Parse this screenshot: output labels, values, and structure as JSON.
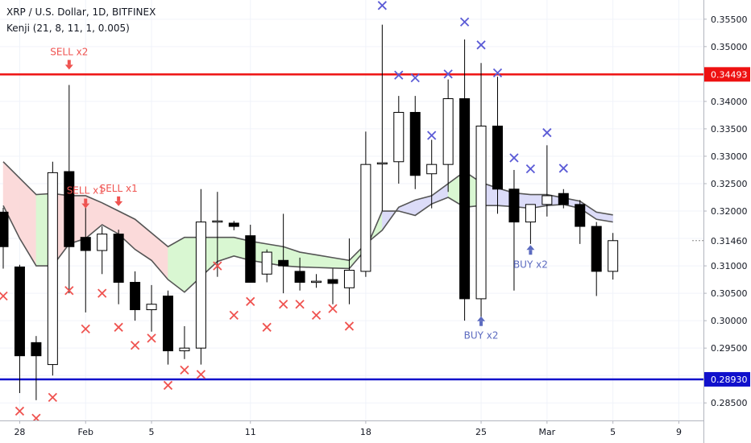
{
  "header": {
    "symbol_line": "XRP / U.S. Dollar, 1D, BITFINEX",
    "indicator_line": "Kenji (21, 8, 11, 1, 0.005)"
  },
  "colors": {
    "up_body": "#ffffff",
    "down_body": "#000000",
    "wick": "#000000",
    "kenji_line": "#555555",
    "fill_bull": "#d9f7d2",
    "fill_bear": "#fbdada",
    "fill_neutral": "#dcdcf8",
    "sell_color": "#ef5350",
    "buy_color": "#5c6bc0",
    "x_red": "#ef5350",
    "x_blue": "#5b5bd6",
    "resistance": "#ee1111",
    "support": "#1111cc",
    "grid": "#f0f3fa",
    "axis_text": "#131722"
  },
  "chart_data": {
    "type": "candlestick",
    "symbol": "XRP / U.S. Dollar",
    "interval": "1D",
    "exchange": "BITFINEX",
    "ylim": [
      0.2818,
      0.3585
    ],
    "y_ticks": [
      "0.28500",
      "0.29000",
      "0.29500",
      "0.30000",
      "0.30500",
      "0.31000",
      "0.31500",
      "0.32000",
      "0.32500",
      "0.33000",
      "0.33500",
      "0.34000",
      "0.34500",
      "0.35000",
      "0.35500"
    ],
    "x_ticks": [
      {
        "label": "28",
        "index": 1
      },
      {
        "label": "Feb",
        "index": 5
      },
      {
        "label": "5",
        "index": 9
      },
      {
        "label": "11",
        "index": 15
      },
      {
        "label": "18",
        "index": 22
      },
      {
        "label": "25",
        "index": 29
      },
      {
        "label": "Mar",
        "index": 33
      },
      {
        "label": "5",
        "index": 37
      },
      {
        "label": "9",
        "index": 41
      }
    ],
    "candles": [
      {
        "o": 0.3198,
        "h": 0.3206,
        "l": 0.3095,
        "c": 0.3135
      },
      {
        "o": 0.3098,
        "h": 0.3102,
        "l": 0.2868,
        "c": 0.2936
      },
      {
        "o": 0.296,
        "h": 0.2972,
        "l": 0.2855,
        "c": 0.2936
      },
      {
        "o": 0.292,
        "h": 0.329,
        "l": 0.29,
        "c": 0.327
      },
      {
        "o": 0.3272,
        "h": 0.343,
        "l": 0.305,
        "c": 0.3135
      },
      {
        "o": 0.3152,
        "h": 0.322,
        "l": 0.3015,
        "c": 0.3128
      },
      {
        "o": 0.3128,
        "h": 0.3172,
        "l": 0.3085,
        "c": 0.3158
      },
      {
        "o": 0.3158,
        "h": 0.3166,
        "l": 0.303,
        "c": 0.307
      },
      {
        "o": 0.307,
        "h": 0.309,
        "l": 0.3,
        "c": 0.302
      },
      {
        "o": 0.302,
        "h": 0.3065,
        "l": 0.298,
        "c": 0.303
      },
      {
        "o": 0.3045,
        "h": 0.3055,
        "l": 0.292,
        "c": 0.2945
      },
      {
        "o": 0.2945,
        "h": 0.299,
        "l": 0.293,
        "c": 0.295
      },
      {
        "o": 0.295,
        "h": 0.324,
        "l": 0.292,
        "c": 0.318
      },
      {
        "o": 0.318,
        "h": 0.3235,
        "l": 0.308,
        "c": 0.3182
      },
      {
        "o": 0.3178,
        "h": 0.3182,
        "l": 0.3165,
        "c": 0.3172
      },
      {
        "o": 0.3155,
        "h": 0.3175,
        "l": 0.3075,
        "c": 0.307
      },
      {
        "o": 0.3085,
        "h": 0.313,
        "l": 0.307,
        "c": 0.3125
      },
      {
        "o": 0.311,
        "h": 0.3195,
        "l": 0.305,
        "c": 0.31
      },
      {
        "o": 0.309,
        "h": 0.3115,
        "l": 0.3055,
        "c": 0.307
      },
      {
        "o": 0.307,
        "h": 0.3085,
        "l": 0.306,
        "c": 0.3072
      },
      {
        "o": 0.3075,
        "h": 0.3095,
        "l": 0.303,
        "c": 0.3068
      },
      {
        "o": 0.306,
        "h": 0.315,
        "l": 0.303,
        "c": 0.3092
      },
      {
        "o": 0.309,
        "h": 0.3345,
        "l": 0.308,
        "c": 0.3285
      },
      {
        "o": 0.3287,
        "h": 0.354,
        "l": 0.32,
        "c": 0.3288
      },
      {
        "o": 0.329,
        "h": 0.341,
        "l": 0.325,
        "c": 0.338
      },
      {
        "o": 0.338,
        "h": 0.341,
        "l": 0.324,
        "c": 0.3265
      },
      {
        "o": 0.3268,
        "h": 0.333,
        "l": 0.3205,
        "c": 0.3285
      },
      {
        "o": 0.3285,
        "h": 0.344,
        "l": 0.3235,
        "c": 0.3405
      },
      {
        "o": 0.3405,
        "h": 0.3513,
        "l": 0.3,
        "c": 0.304
      },
      {
        "o": 0.304,
        "h": 0.347,
        "l": 0.3,
        "c": 0.3355
      },
      {
        "o": 0.3355,
        "h": 0.3445,
        "l": 0.3195,
        "c": 0.324
      },
      {
        "o": 0.324,
        "h": 0.3275,
        "l": 0.3055,
        "c": 0.318
      },
      {
        "o": 0.318,
        "h": 0.321,
        "l": 0.314,
        "c": 0.3212
      },
      {
        "o": 0.3212,
        "h": 0.332,
        "l": 0.319,
        "c": 0.3228
      },
      {
        "o": 0.3232,
        "h": 0.324,
        "l": 0.3205,
        "c": 0.3212
      },
      {
        "o": 0.3212,
        "h": 0.322,
        "l": 0.314,
        "c": 0.3172
      },
      {
        "o": 0.3172,
        "h": 0.318,
        "l": 0.3045,
        "c": 0.309
      },
      {
        "o": 0.309,
        "h": 0.316,
        "l": 0.3075,
        "c": 0.3146
      }
    ],
    "kenji_upper": [
      0.329,
      0.326,
      0.323,
      0.3232,
      0.3228,
      0.3228,
      0.3215,
      0.32,
      0.3185,
      0.316,
      0.3135,
      0.3152,
      0.3152,
      0.3152,
      0.3152,
      0.3145,
      0.314,
      0.3135,
      0.3125,
      0.312,
      0.3115,
      0.311,
      0.314,
      0.3165,
      0.3207,
      0.322,
      0.3228,
      0.325,
      0.3272,
      0.3252,
      0.3242,
      0.3233,
      0.323,
      0.323,
      0.3224,
      0.3218,
      0.3198,
      0.3193
    ],
    "kenji_lower": [
      0.321,
      0.315,
      0.31,
      0.31,
      0.314,
      0.315,
      0.3175,
      0.3158,
      0.313,
      0.311,
      0.3075,
      0.3052,
      0.308,
      0.3108,
      0.3118,
      0.311,
      0.3105,
      0.31,
      0.3098,
      0.3097,
      0.3096,
      0.3095,
      0.313,
      0.32,
      0.32,
      0.3192,
      0.3213,
      0.3225,
      0.3207,
      0.321,
      0.321,
      0.3208,
      0.3205,
      0.321,
      0.3212,
      0.3205,
      0.3185,
      0.318
    ],
    "fill_types": [
      "bear",
      "bear",
      "bull",
      "bear",
      "bear",
      "bear",
      "bear",
      "bear",
      "bear",
      "bear",
      "bull",
      "bull",
      "bull",
      "bull",
      "bull",
      "bull",
      "bull",
      "bull",
      "bull",
      "bull",
      "bull",
      "bull",
      "bull",
      "neutral",
      "neutral",
      "neutral",
      "neutral",
      "bull",
      "bull",
      "neutral",
      "neutral",
      "neutral",
      "neutral",
      "neutral",
      "neutral",
      "neutral",
      "neutral",
      "neutral"
    ],
    "x_markers": [
      {
        "index": 0,
        "value": 0.3045,
        "color": "red"
      },
      {
        "index": 1,
        "value": 0.2835,
        "color": "red"
      },
      {
        "index": 2,
        "value": 0.2822,
        "color": "red"
      },
      {
        "index": 3,
        "value": 0.286,
        "color": "red"
      },
      {
        "index": 4,
        "value": 0.3055,
        "color": "red"
      },
      {
        "index": 5,
        "value": 0.2985,
        "color": "red"
      },
      {
        "index": 6,
        "value": 0.305,
        "color": "red"
      },
      {
        "index": 7,
        "value": 0.2988,
        "color": "red"
      },
      {
        "index": 8,
        "value": 0.2955,
        "color": "red"
      },
      {
        "index": 9,
        "value": 0.2968,
        "color": "red"
      },
      {
        "index": 10,
        "value": 0.2882,
        "color": "red"
      },
      {
        "index": 11,
        "value": 0.291,
        "color": "red"
      },
      {
        "index": 12,
        "value": 0.2902,
        "color": "red"
      },
      {
        "index": 13,
        "value": 0.31,
        "color": "red"
      },
      {
        "index": 14,
        "value": 0.301,
        "color": "red"
      },
      {
        "index": 15,
        "value": 0.3035,
        "color": "red"
      },
      {
        "index": 16,
        "value": 0.2988,
        "color": "red"
      },
      {
        "index": 17,
        "value": 0.303,
        "color": "red"
      },
      {
        "index": 18,
        "value": 0.303,
        "color": "red"
      },
      {
        "index": 19,
        "value": 0.301,
        "color": "red"
      },
      {
        "index": 20,
        "value": 0.3022,
        "color": "red"
      },
      {
        "index": 21,
        "value": 0.299,
        "color": "red"
      },
      {
        "index": 23,
        "value": 0.3575,
        "color": "blue"
      },
      {
        "index": 24,
        "value": 0.3448,
        "color": "blue"
      },
      {
        "index": 25,
        "value": 0.3443,
        "color": "blue"
      },
      {
        "index": 26,
        "value": 0.3338,
        "color": "blue"
      },
      {
        "index": 27,
        "value": 0.345,
        "color": "blue"
      },
      {
        "index": 28,
        "value": 0.3545,
        "color": "blue"
      },
      {
        "index": 29,
        "value": 0.3503,
        "color": "blue"
      },
      {
        "index": 30,
        "value": 0.3452,
        "color": "blue"
      },
      {
        "index": 31,
        "value": 0.3297,
        "color": "blue"
      },
      {
        "index": 32,
        "value": 0.3277,
        "color": "blue"
      },
      {
        "index": 33,
        "value": 0.3343,
        "color": "blue"
      },
      {
        "index": 34,
        "value": 0.3278,
        "color": "blue"
      }
    ],
    "signals": [
      {
        "index": 4,
        "value": 0.3461,
        "dir": "down",
        "label": "SELL x2"
      },
      {
        "index": 5,
        "value": 0.3208,
        "dir": "down",
        "label": "SELL x1"
      },
      {
        "index": 7,
        "value": 0.3212,
        "dir": "down",
        "label": "SELL x1"
      },
      {
        "index": 29,
        "value": 0.3005,
        "dir": "up",
        "label": "BUY x2"
      },
      {
        "index": 32,
        "value": 0.3135,
        "dir": "up",
        "label": "BUY x2"
      }
    ],
    "hlines": [
      {
        "value": 0.34493,
        "label": "0.34493",
        "color": "red"
      },
      {
        "value": 0.2893,
        "label": "0.28930",
        "color": "blue"
      }
    ],
    "last_price": {
      "value": 0.3146,
      "label": "0.31460"
    }
  }
}
